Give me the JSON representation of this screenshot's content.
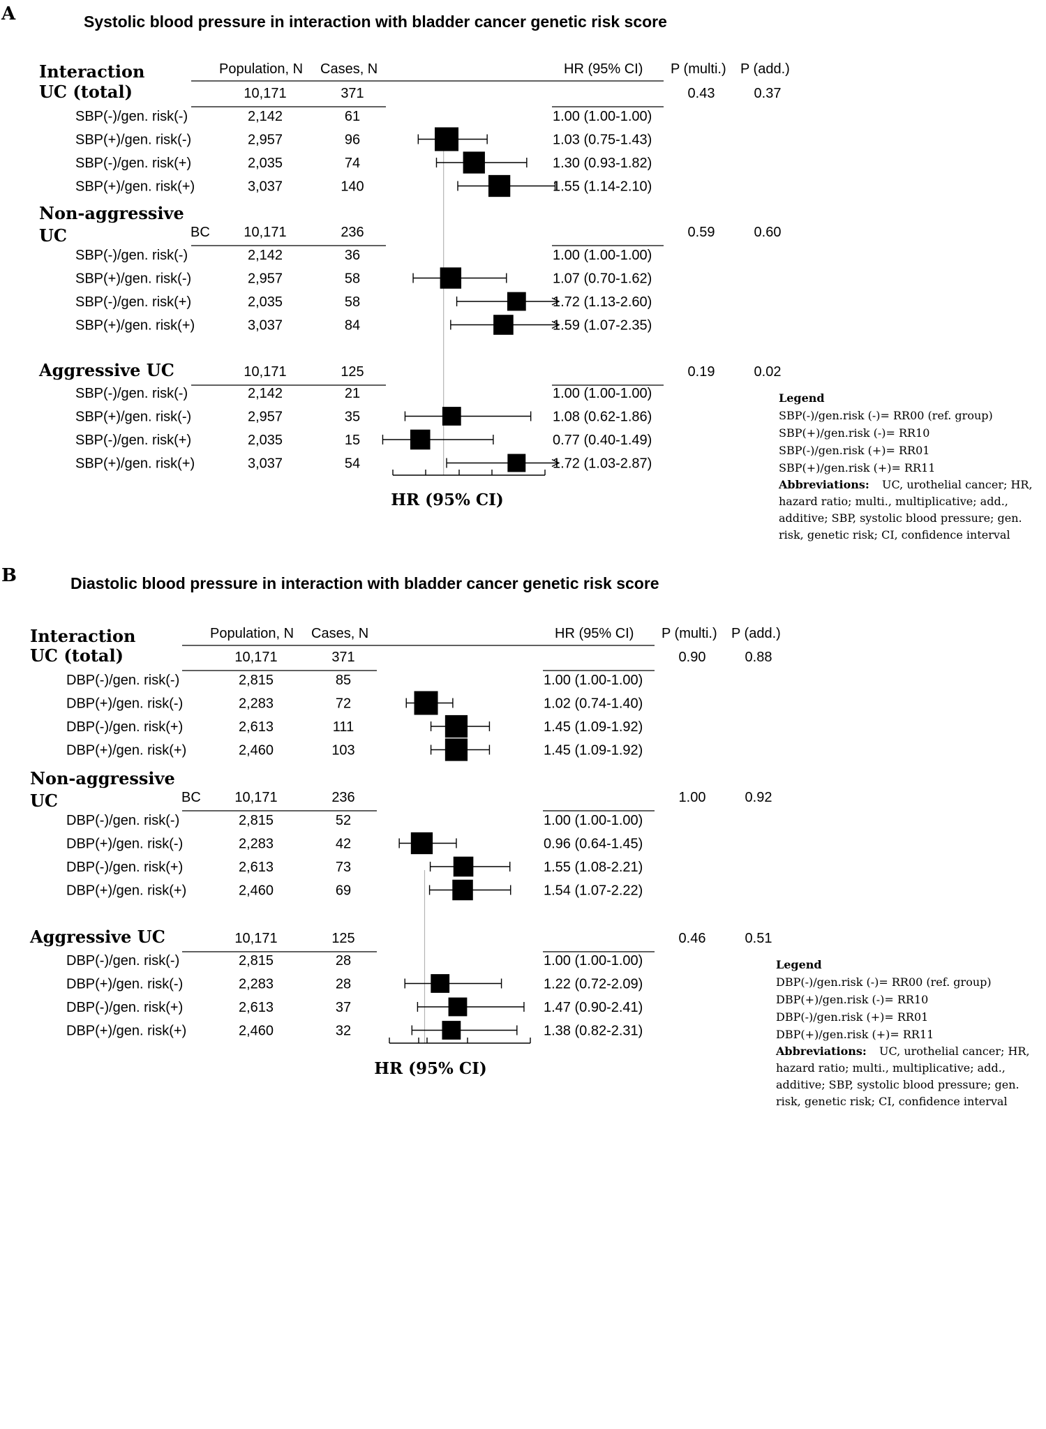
{
  "colors": {
    "ink": "#000000",
    "refline": "#b4b4b4",
    "background": "#ffffff"
  },
  "chart_data": [
    {
      "type": "forest",
      "panel_label": "A",
      "title": "Systolic blood pressure in interaction with bladder cancer genetic risk score",
      "headers": {
        "interaction": "Interaction",
        "population": "Population, N",
        "cases": "Cases, N",
        "hr": "HR (95% CI)",
        "p_multi": "P (multi.)",
        "p_add": "P (add.)"
      },
      "xlabel": "HR (95% CI)",
      "reference_value": 1.0,
      "axis_range": [
        0.5,
        2.0
      ],
      "groups": [
        {
          "label_lines": [
            "UC (total)"
          ],
          "extra_label": "",
          "population": "10,171",
          "cases": "371",
          "p_multi": "0.43",
          "p_add": "0.37",
          "rows": [
            {
              "label": "SBP(-)/gen. risk(-)",
              "population": "2,142",
              "cases": "61",
              "hr_text": "1.00 (1.00-1.00)",
              "hr": 1.0,
              "lo": 1.0,
              "hi": 1.0,
              "weight": 0,
              "reference": true
            },
            {
              "label": "SBP(+)/gen. risk(-)",
              "population": "2,957",
              "cases": "96",
              "hr_text": "1.03 (0.75-1.43)",
              "hr": 1.03,
              "lo": 0.75,
              "hi": 1.43,
              "weight": 1.0
            },
            {
              "label": "SBP(-)/gen. risk(+)",
              "population": "2,035",
              "cases": "74",
              "hr_text": "1.30 (0.93-1.82)",
              "hr": 1.3,
              "lo": 0.93,
              "hi": 1.82,
              "weight": 0.85
            },
            {
              "label": "SBP(+)/gen. risk(+)",
              "population": "3,037",
              "cases": "140",
              "hr_text": "1.55 (1.14-2.10)",
              "hr": 1.55,
              "lo": 1.14,
              "hi": 2.1,
              "weight": 0.85
            }
          ]
        },
        {
          "label_lines": [
            "Non-aggressive",
            "UC"
          ],
          "extra_label": "BC",
          "population": "10,171",
          "cases": "236",
          "p_multi": "0.59",
          "p_add": "0.60",
          "rows": [
            {
              "label": "SBP(-)/gen. risk(-)",
              "population": "2,142",
              "cases": "36",
              "hr_text": "1.00 (1.00-1.00)",
              "hr": 1.0,
              "lo": 1.0,
              "hi": 1.0,
              "weight": 0,
              "reference": true
            },
            {
              "label": "SBP(+)/gen. risk(-)",
              "population": "2,957",
              "cases": "58",
              "hr_text": "1.07 (0.70-1.62)",
              "hr": 1.07,
              "lo": 0.7,
              "hi": 1.62,
              "weight": 0.8
            },
            {
              "label": "SBP(-)/gen. risk(+)",
              "population": "2,035",
              "cases": "58",
              "hr_text": "1.72 (1.13-2.60)",
              "hr": 1.72,
              "lo": 1.13,
              "hi": 2.6,
              "weight": 0.6
            },
            {
              "label": "SBP(+)/gen. risk(+)",
              "population": "3,037",
              "cases": "84",
              "hr_text": "1.59 (1.07-2.35)",
              "hr": 1.59,
              "lo": 1.07,
              "hi": 2.35,
              "weight": 0.7
            }
          ]
        },
        {
          "label_lines": [
            "Aggressive UC"
          ],
          "extra_label": "",
          "population": "10,171",
          "cases": "125",
          "p_multi": "0.19",
          "p_add": "0.02",
          "rows": [
            {
              "label": "SBP(-)/gen. risk(-)",
              "population": "2,142",
              "cases": "21",
              "hr_text": "1.00 (1.00-1.00)",
              "hr": 1.0,
              "lo": 1.0,
              "hi": 1.0,
              "weight": 0,
              "reference": true
            },
            {
              "label": "SBP(+)/gen. risk(-)",
              "population": "2,957",
              "cases": "35",
              "hr_text": "1.08 (0.62-1.86)",
              "hr": 1.08,
              "lo": 0.62,
              "hi": 1.86,
              "weight": 0.6
            },
            {
              "label": "SBP(-)/gen. risk(+)",
              "population": "2,035",
              "cases": "15",
              "hr_text": "0.77 (0.40-1.49)",
              "hr": 0.77,
              "lo": 0.4,
              "hi": 1.49,
              "weight": 0.7
            },
            {
              "label": "SBP(+)/gen. risk(+)",
              "population": "3,037",
              "cases": "54",
              "hr_text": "1.72 (1.03-2.87)",
              "hr": 1.72,
              "lo": 1.03,
              "hi": 2.87,
              "weight": 0.55
            }
          ]
        }
      ],
      "legend": {
        "title": "Legend",
        "lines": [
          "SBP(-)/gen.risk (-)= RR00 (ref. group)",
          "SBP(+)/gen.risk (-)= RR10",
          "SBP(-)/gen.risk (+)= RR01",
          "SBP(+)/gen.risk (+)= RR11"
        ]
      },
      "abbreviations": {
        "title": "Abbreviations:",
        "lines": [
          " UC, urothelial cancer; HR,",
          "hazard ratio; multi., multiplicative; add.,",
          "additive; SBP, systolic blood pressure;  gen.",
          "risk, genetic risk; CI, confidence interval"
        ]
      }
    },
    {
      "type": "forest",
      "panel_label": "B",
      "title": "Diastolic blood pressure in interaction with bladder cancer genetic risk score",
      "headers": {
        "interaction": "Interaction",
        "population": "Population, N",
        "cases": "Cases, N",
        "hr": "HR (95% CI)",
        "p_multi": "P (multi.)",
        "p_add": "P (add.)"
      },
      "xlabel": "HR (95% CI)",
      "reference_value": 1.0,
      "axis_range": [
        0.5,
        2.5
      ],
      "groups": [
        {
          "label_lines": [
            "UC (total)"
          ],
          "extra_label": "",
          "population": "10,171",
          "cases": "371",
          "p_multi": "0.90",
          "p_add": "0.88",
          "rows": [
            {
              "label": "DBP(-)/gen. risk(-)",
              "population": "2,815",
              "cases": "85",
              "hr_text": "1.00 (1.00-1.00)",
              "hr": 1.0,
              "lo": 1.0,
              "hi": 1.0,
              "weight": 0,
              "reference": true
            },
            {
              "label": "DBP(+)/gen. risk(-)",
              "population": "2,283",
              "cases": "72",
              "hr_text": "1.02 (0.74-1.40)",
              "hr": 1.02,
              "lo": 0.74,
              "hi": 1.4,
              "weight": 1.0
            },
            {
              "label": "DBP(-)/gen. risk(+)",
              "population": "2,613",
              "cases": "111",
              "hr_text": "1.45 (1.09-1.92)",
              "hr": 1.45,
              "lo": 1.09,
              "hi": 1.92,
              "weight": 0.9
            },
            {
              "label": "DBP(+)/gen. risk(+)",
              "population": "2,460",
              "cases": "103",
              "hr_text": "1.45 (1.09-1.92)",
              "hr": 1.45,
              "lo": 1.09,
              "hi": 1.92,
              "weight": 0.9
            }
          ]
        },
        {
          "label_lines": [
            "Non-aggressive",
            "UC"
          ],
          "extra_label": "BC",
          "population": "10,171",
          "cases": "236",
          "p_multi": "1.00",
          "p_add": "0.92",
          "rows": [
            {
              "label": "DBP(-)/gen. risk(-)",
              "population": "2,815",
              "cases": "52",
              "hr_text": "1.00 (1.00-1.00)",
              "hr": 1.0,
              "lo": 1.0,
              "hi": 1.0,
              "weight": 0,
              "reference": true
            },
            {
              "label": "DBP(+)/gen. risk(-)",
              "population": "2,283",
              "cases": "42",
              "hr_text": "0.96 (0.64-1.45)",
              "hr": 0.96,
              "lo": 0.64,
              "hi": 1.45,
              "weight": 0.85
            },
            {
              "label": "DBP(-)/gen. risk(+)",
              "population": "2,613",
              "cases": "73",
              "hr_text": "1.55 (1.08-2.21)",
              "hr": 1.55,
              "lo": 1.08,
              "hi": 2.21,
              "weight": 0.7
            },
            {
              "label": "DBP(+)/gen. risk(+)",
              "population": "2,460",
              "cases": "69",
              "hr_text": "1.54 (1.07-2.22)",
              "hr": 1.54,
              "lo": 1.07,
              "hi": 2.22,
              "weight": 0.75
            }
          ]
        },
        {
          "label_lines": [
            "Aggressive UC"
          ],
          "extra_label": "",
          "population": "10,171",
          "cases": "125",
          "p_multi": "0.46",
          "p_add": "0.51",
          "rows": [
            {
              "label": "DBP(-)/gen. risk(-)",
              "population": "2,815",
              "cases": "28",
              "hr_text": "1.00 (1.00-1.00)",
              "hr": 1.0,
              "lo": 1.0,
              "hi": 1.0,
              "weight": 0,
              "reference": true
            },
            {
              "label": "DBP(+)/gen. risk(-)",
              "population": "2,283",
              "cases": "28",
              "hr_text": "1.22 (0.72-2.09)",
              "hr": 1.22,
              "lo": 0.72,
              "hi": 2.09,
              "weight": 0.6
            },
            {
              "label": "DBP(-)/gen. risk(+)",
              "population": "2,613",
              "cases": "37",
              "hr_text": "1.47 (0.90-2.41)",
              "hr": 1.47,
              "lo": 0.9,
              "hi": 2.41,
              "weight": 0.6
            },
            {
              "label": "DBP(+)/gen. risk(+)",
              "population": "2,460",
              "cases": "32",
              "hr_text": "1.38 (0.82-2.31)",
              "hr": 1.38,
              "lo": 0.82,
              "hi": 2.31,
              "weight": 0.6
            }
          ]
        }
      ],
      "legend": {
        "title": "Legend",
        "lines": [
          "DBP(-)/gen.risk (-)= RR00 (ref. group)",
          "DBP(+)/gen.risk (-)= RR10",
          "DBP(-)/gen.risk (+)= RR01",
          "DBP(+)/gen.risk (+)= RR11"
        ]
      },
      "abbreviations": {
        "title": "Abbreviations:",
        "lines": [
          " UC, urothelial cancer; HR,",
          "hazard ratio; multi., multiplicative; add.,",
          "additive; SBP, systolic blood pressure;  gen.",
          "risk, genetic risk; CI, confidence interval"
        ]
      }
    }
  ]
}
